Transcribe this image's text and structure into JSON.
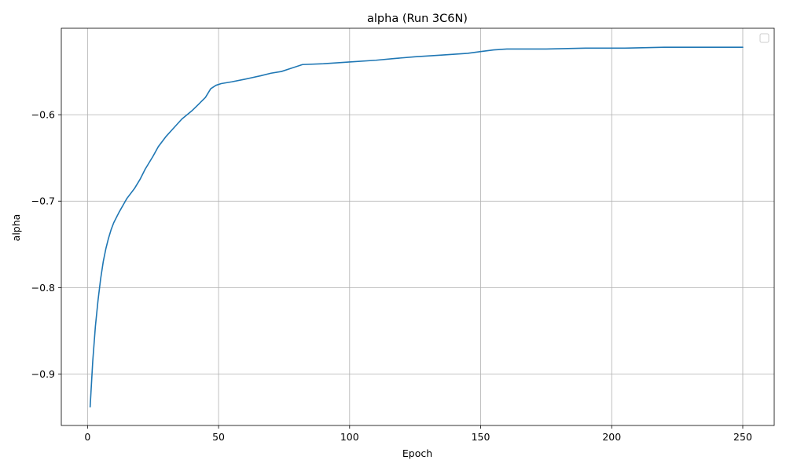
{
  "chart_data": {
    "type": "line",
    "title": "alpha (Run 3C6N)",
    "xlabel": "Epoch",
    "ylabel": "alpha",
    "xlim": [
      -10,
      262
    ],
    "ylim": [
      -0.9595,
      -0.5
    ],
    "xticks": [
      0,
      50,
      100,
      150,
      200,
      250
    ],
    "xtick_labels": [
      "0",
      "50",
      "100",
      "150",
      "200",
      "250"
    ],
    "yticks": [
      -0.9,
      -0.8,
      -0.7,
      -0.6
    ],
    "ytick_labels": [
      "−0.9",
      "−0.8",
      "−0.7",
      "−0.6"
    ],
    "grid": true,
    "legend": "upper right, empty",
    "series": [
      {
        "color": "#1f77b4",
        "x": [
          1,
          2,
          3,
          4,
          5,
          6,
          7,
          8,
          9,
          10,
          12,
          15,
          18,
          20,
          22,
          25,
          27,
          30,
          33,
          36,
          38,
          40,
          42,
          45,
          47,
          49,
          51,
          55,
          60,
          63,
          66,
          70,
          74,
          77,
          82,
          90,
          100,
          110,
          117,
          125,
          135,
          145,
          150,
          155,
          160,
          175,
          190,
          205,
          220,
          235,
          250
        ],
        "y": [
          -0.938,
          -0.885,
          -0.845,
          -0.815,
          -0.79,
          -0.77,
          -0.755,
          -0.743,
          -0.733,
          -0.725,
          -0.713,
          -0.697,
          -0.685,
          -0.675,
          -0.663,
          -0.648,
          -0.637,
          -0.625,
          -0.615,
          -0.605,
          -0.6,
          -0.595,
          -0.589,
          -0.58,
          -0.57,
          -0.566,
          -0.564,
          -0.562,
          -0.559,
          -0.557,
          -0.555,
          -0.552,
          -0.55,
          -0.547,
          -0.542,
          -0.541,
          -0.539,
          -0.537,
          -0.535,
          -0.533,
          -0.531,
          -0.529,
          -0.527,
          -0.525,
          -0.524,
          -0.524,
          -0.523,
          -0.523,
          -0.522,
          -0.522,
          -0.522
        ]
      }
    ]
  }
}
